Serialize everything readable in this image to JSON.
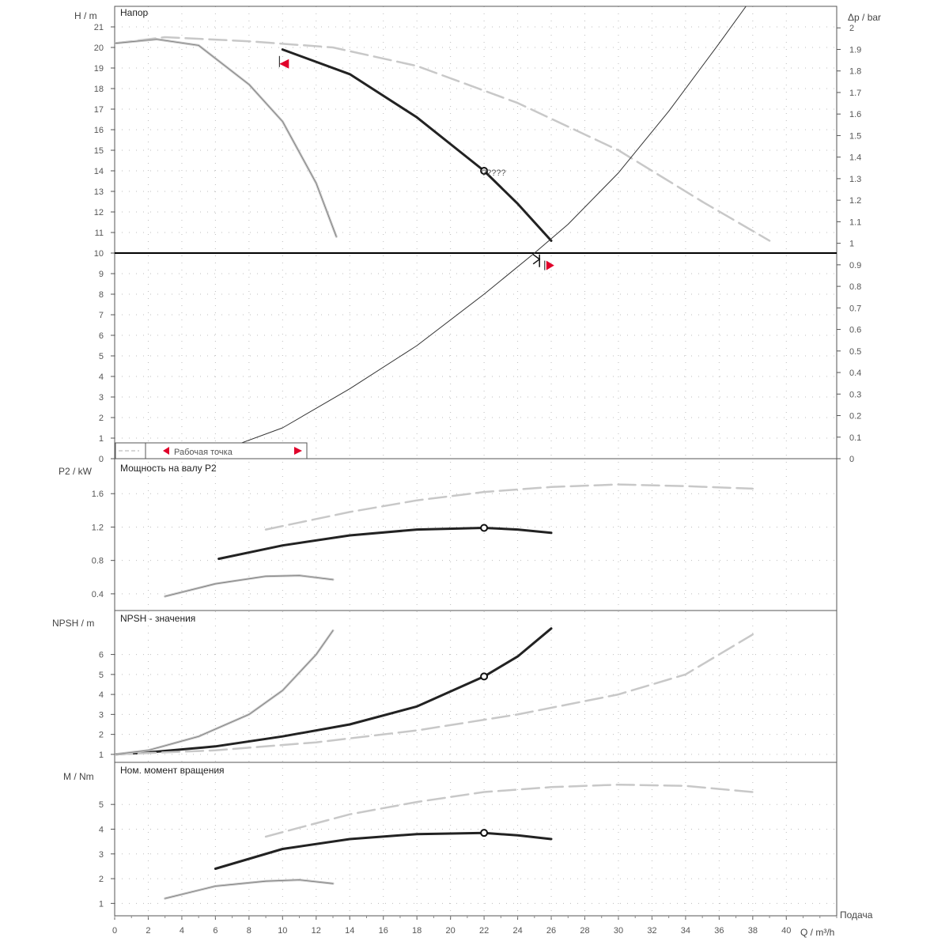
{
  "colors": {
    "main_curve": "#222222",
    "ghost_curve": "#c8c8c8",
    "system_curve": "#333333",
    "marker_red": "#e0002a",
    "frame": "#555555",
    "grid": "#bdbdbd"
  },
  "x_axis": {
    "label": "Q / m³/h",
    "side_label": "Подача",
    "range": [
      0,
      43
    ],
    "ticks": [
      0,
      2,
      4,
      6,
      8,
      10,
      12,
      14,
      16,
      18,
      20,
      22,
      24,
      26,
      28,
      30,
      32,
      34,
      36,
      38,
      40
    ]
  },
  "chart_data": [
    {
      "type": "line",
      "title": "Напор",
      "ylabel": "H / m",
      "ylim": [
        0,
        22
      ],
      "yticks": [
        0,
        1,
        2,
        3,
        4,
        5,
        6,
        7,
        8,
        9,
        10,
        11,
        12,
        13,
        14,
        15,
        16,
        17,
        18,
        19,
        20,
        21
      ],
      "secondary_axis": {
        "label": "Δp / bar",
        "range": [
          0,
          2.1
        ],
        "ticks": [
          "0",
          "0.1",
          "0.2",
          "0.3",
          "0.4",
          "0.5",
          "0.6",
          "0.7",
          "0.8",
          "0.9",
          "1",
          "1.1",
          "1.2",
          "1.3",
          "1.4",
          "1.5",
          "1.6",
          "1.7",
          "1.8",
          "1.9",
          "2"
        ]
      },
      "annotation": {
        "text": "?????",
        "x": 22,
        "y": 14
      },
      "legend_text": "Рабочая точка",
      "series": [
        {
          "style": "main",
          "points": [
            [
              10,
              19.9
            ],
            [
              14,
              18.7
            ],
            [
              18,
              16.6
            ],
            [
              22,
              14
            ],
            [
              24,
              12.4
            ],
            [
              26,
              10.6
            ]
          ]
        },
        {
          "style": "ghost-dash",
          "points": [
            [
              0,
              20.2
            ],
            [
              3,
              20.5
            ],
            [
              8,
              20.3
            ],
            [
              13,
              20
            ],
            [
              18,
              19.1
            ],
            [
              24,
              17.3
            ],
            [
              30,
              15
            ],
            [
              35,
              12.5
            ],
            [
              39,
              10.6
            ]
          ]
        },
        {
          "style": "ghost-solid",
          "points": [
            [
              0,
              20.2
            ],
            [
              2.5,
              20.4
            ],
            [
              5,
              20.1
            ],
            [
              8,
              18.2
            ],
            [
              10,
              16.4
            ],
            [
              12,
              13.4
            ],
            [
              13.2,
              10.8
            ]
          ]
        },
        {
          "style": "system",
          "points": [
            [
              6,
              0.3
            ],
            [
              10,
              1.5
            ],
            [
              14,
              3.4
            ],
            [
              18,
              5.5
            ],
            [
              22,
              8
            ],
            [
              25,
              10
            ],
            [
              27,
              11.4
            ],
            [
              30,
              13.9
            ],
            [
              33,
              16.9
            ],
            [
              36,
              20.2
            ],
            [
              37.6,
              22
            ]
          ]
        }
      ],
      "markers": [
        {
          "kind": "circle",
          "x": 22,
          "y": 14
        },
        {
          "kind": "flag-left",
          "x": 10,
          "y": 19.2
        },
        {
          "kind": "flag-right",
          "x": 25.8,
          "y": 9.4
        },
        {
          "kind": "tick",
          "x": 25.3,
          "y": 9.7
        }
      ]
    },
    {
      "type": "line",
      "title": "Мощность на валу P2",
      "ylabel": "P2 / kW",
      "ylim": [
        0.2,
        2.0
      ],
      "yticks": [
        "0.4",
        "0.8",
        "1.2",
        "1.6"
      ],
      "series": [
        {
          "style": "main",
          "points": [
            [
              6.2,
              0.82
            ],
            [
              10,
              0.98
            ],
            [
              14,
              1.1
            ],
            [
              18,
              1.17
            ],
            [
              22,
              1.19
            ],
            [
              24,
              1.17
            ],
            [
              26,
              1.13
            ]
          ]
        },
        {
          "style": "ghost-dash",
          "points": [
            [
              9,
              1.17
            ],
            [
              14,
              1.38
            ],
            [
              18,
              1.52
            ],
            [
              22,
              1.62
            ],
            [
              26,
              1.68
            ],
            [
              30,
              1.71
            ],
            [
              34,
              1.69
            ],
            [
              38,
              1.66
            ]
          ]
        },
        {
          "style": "ghost-solid",
          "points": [
            [
              3,
              0.37
            ],
            [
              6,
              0.52
            ],
            [
              9,
              0.61
            ],
            [
              11,
              0.62
            ],
            [
              13,
              0.57
            ]
          ]
        }
      ],
      "markers": [
        {
          "kind": "circle",
          "x": 22,
          "y": 1.19
        }
      ]
    },
    {
      "type": "line",
      "title": "NPSH - значения",
      "ylabel": "NPSH / m",
      "ylim": [
        0.6,
        8.2
      ],
      "yticks": [
        1,
        2,
        3,
        4,
        5,
        6
      ],
      "series": [
        {
          "style": "main",
          "points": [
            [
              0,
              1
            ],
            [
              2,
              1.1
            ],
            [
              6,
              1.4
            ],
            [
              10,
              1.9
            ],
            [
              14,
              2.5
            ],
            [
              18,
              3.4
            ],
            [
              22,
              4.9
            ],
            [
              24,
              5.9
            ],
            [
              26,
              7.3
            ]
          ]
        },
        {
          "style": "ghost-dash",
          "points": [
            [
              0,
              1
            ],
            [
              6,
              1.2
            ],
            [
              12,
              1.6
            ],
            [
              18,
              2.2
            ],
            [
              24,
              3
            ],
            [
              30,
              4
            ],
            [
              34,
              5
            ],
            [
              38,
              7
            ]
          ]
        },
        {
          "style": "ghost-solid",
          "points": [
            [
              0,
              1
            ],
            [
              2,
              1.2
            ],
            [
              5,
              1.9
            ],
            [
              8,
              3
            ],
            [
              10,
              4.2
            ],
            [
              12,
              6
            ],
            [
              13,
              7.2
            ]
          ]
        }
      ],
      "markers": [
        {
          "kind": "circle",
          "x": 22,
          "y": 4.9
        }
      ]
    },
    {
      "type": "line",
      "title": "Ном. момент вращения",
      "ylabel": "M / Nm",
      "ylim": [
        0.5,
        6.7
      ],
      "yticks": [
        1,
        2,
        3,
        4,
        5
      ],
      "series": [
        {
          "style": "main",
          "points": [
            [
              6,
              2.4
            ],
            [
              10,
              3.2
            ],
            [
              14,
              3.6
            ],
            [
              18,
              3.8
            ],
            [
              22,
              3.85
            ],
            [
              24,
              3.75
            ],
            [
              26,
              3.6
            ]
          ]
        },
        {
          "style": "ghost-dash",
          "points": [
            [
              9,
              3.7
            ],
            [
              14,
              4.6
            ],
            [
              18,
              5.1
            ],
            [
              22,
              5.5
            ],
            [
              26,
              5.7
            ],
            [
              30,
              5.8
            ],
            [
              34,
              5.75
            ],
            [
              38,
              5.5
            ]
          ]
        },
        {
          "style": "ghost-solid",
          "points": [
            [
              3,
              1.2
            ],
            [
              6,
              1.7
            ],
            [
              9,
              1.9
            ],
            [
              11,
              1.95
            ],
            [
              13,
              1.8
            ]
          ]
        }
      ],
      "markers": [
        {
          "kind": "circle",
          "x": 22,
          "y": 3.85
        }
      ]
    }
  ]
}
